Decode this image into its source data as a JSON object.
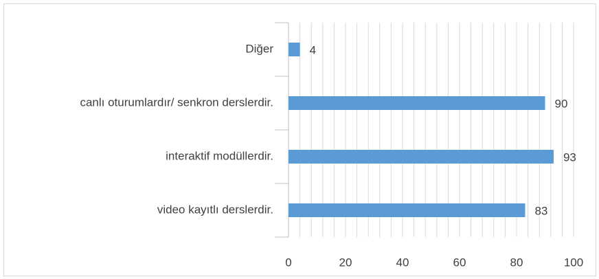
{
  "chart_data": {
    "type": "bar",
    "orientation": "horizontal",
    "categories": [
      "Diğer",
      "canlı oturumlardır/ senkron derslerdir.",
      "interaktif modüllerdir.",
      "video kayıtlı derslerdir."
    ],
    "values": [
      4,
      90,
      93,
      83
    ],
    "color": "#5b9bd5",
    "xlim": [
      0,
      100
    ],
    "xticks": [
      0,
      20,
      40,
      60,
      80,
      100
    ],
    "minor_xticks": [
      4,
      8,
      12,
      16,
      24,
      28,
      32,
      36,
      44,
      48,
      52,
      56,
      64,
      68,
      72,
      76,
      84,
      88,
      92,
      96
    ],
    "grid": true,
    "data_labels": true
  }
}
